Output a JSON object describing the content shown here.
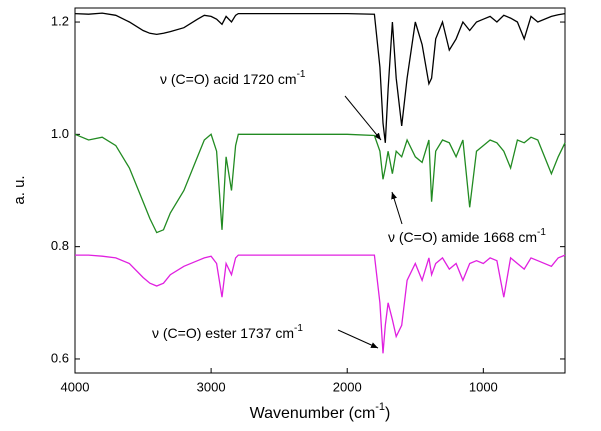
{
  "chart_data": {
    "type": "line",
    "x_label": "Wavenumber  (cm",
    "x_label_sup": "-1",
    "x_label_end": ")",
    "y_label": "a. u.",
    "xlim": [
      4000,
      400
    ],
    "xticks": [
      4000,
      3000,
      2000,
      1000
    ],
    "ylim": [
      0.575,
      1.225
    ],
    "yticks": [
      0.6,
      0.8,
      {
        "value": 1,
        "label": "1.0"
      },
      1.2
    ],
    "x": [
      4000,
      3900,
      3800,
      3700,
      3600,
      3500,
      3450,
      3400,
      3350,
      3300,
      3200,
      3100,
      3050,
      3000,
      2960,
      2920,
      2890,
      2850,
      2820,
      2800,
      2500,
      2000,
      1800,
      1760,
      1737,
      1720,
      1700,
      1668,
      1640,
      1600,
      1560,
      1500,
      1450,
      1400,
      1380,
      1350,
      1300,
      1250,
      1200,
      1150,
      1100,
      1050,
      1000,
      950,
      900,
      850,
      800,
      750,
      700,
      650,
      600,
      500,
      450,
      400
    ],
    "series": [
      {
        "name": "acid",
        "color": "#000000",
        "values": [
          1.215,
          1.214,
          1.216,
          1.212,
          1.2,
          1.185,
          1.18,
          1.178,
          1.18,
          1.183,
          1.19,
          1.205,
          1.212,
          1.21,
          1.205,
          1.196,
          1.21,
          1.2,
          1.212,
          1.215,
          1.215,
          1.215,
          1.214,
          1.12,
          1.02,
          0.985,
          1.08,
          1.2,
          1.1,
          1.015,
          1.1,
          1.2,
          1.16,
          1.09,
          1.1,
          1.17,
          1.2,
          1.15,
          1.17,
          1.2,
          1.185,
          1.2,
          1.205,
          1.21,
          1.2,
          1.212,
          1.207,
          1.2,
          1.17,
          1.21,
          1.2,
          1.21,
          1.213,
          1.215
        ]
      },
      {
        "name": "amide",
        "color": "#228b22",
        "values": [
          1.0,
          0.99,
          0.995,
          0.98,
          0.94,
          0.88,
          0.85,
          0.825,
          0.83,
          0.86,
          0.9,
          0.96,
          0.99,
          1.0,
          0.97,
          0.83,
          0.96,
          0.9,
          0.98,
          1.0,
          1.0,
          1.0,
          0.998,
          0.97,
          0.92,
          0.94,
          0.97,
          0.93,
          0.97,
          0.96,
          0.99,
          0.96,
          0.95,
          0.99,
          0.88,
          0.97,
          0.99,
          0.985,
          0.96,
          0.99,
          0.87,
          0.97,
          0.98,
          0.99,
          0.985,
          0.97,
          0.94,
          0.99,
          0.985,
          0.995,
          0.99,
          0.93,
          0.96,
          0.985
        ]
      },
      {
        "name": "ester",
        "color": "#e020e0",
        "values": [
          0.785,
          0.785,
          0.783,
          0.78,
          0.77,
          0.745,
          0.735,
          0.73,
          0.735,
          0.75,
          0.765,
          0.775,
          0.78,
          0.783,
          0.77,
          0.71,
          0.77,
          0.75,
          0.78,
          0.785,
          0.785,
          0.785,
          0.785,
          0.7,
          0.61,
          0.66,
          0.7,
          0.67,
          0.64,
          0.66,
          0.74,
          0.77,
          0.74,
          0.78,
          0.75,
          0.77,
          0.78,
          0.76,
          0.77,
          0.74,
          0.77,
          0.775,
          0.77,
          0.78,
          0.775,
          0.71,
          0.78,
          0.77,
          0.76,
          0.78,
          0.775,
          0.765,
          0.78,
          0.785
        ]
      }
    ],
    "annotations": [
      {
        "text": "ν  (C=O) acid 1720 cm",
        "sup": "-1"
      },
      {
        "text": "ν (C=O) amide 1668 cm",
        "sup": "-1"
      },
      {
        "text": "ν (C=O) ester 1737 cm",
        "sup": "-1"
      }
    ]
  }
}
